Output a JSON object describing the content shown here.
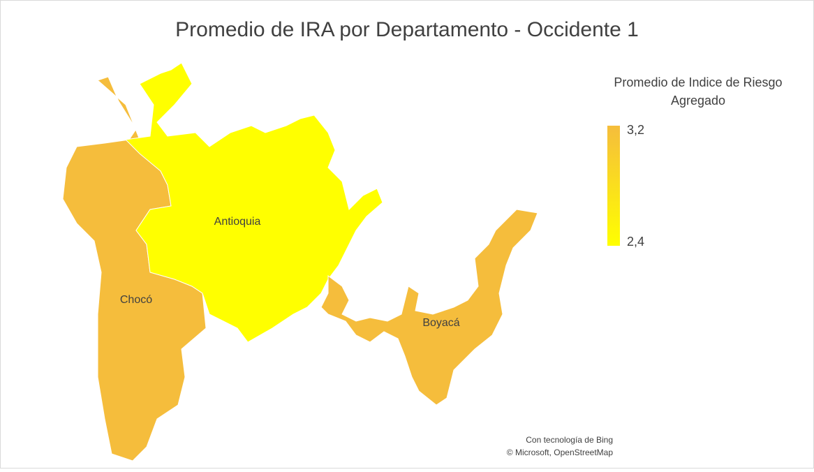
{
  "chart_data": {
    "type": "map",
    "title": "Promedio de IRA por Departamento - Occidente 1",
    "legend_title": [
      "Promedio de Indice de Riesgo",
      "Agregado"
    ],
    "categories": [
      "Chocó",
      "Antioquia",
      "Boyacá"
    ],
    "values": [
      3.2,
      2.4,
      3.2
    ],
    "colors": [
      "#ffff00",
      "#f5bd3c"
    ],
    "clim": [
      2.4,
      3.2
    ],
    "cticks": [
      {
        "value": 3.2,
        "label": "3,2"
      },
      {
        "value": 2.4,
        "label": "2,4"
      }
    ],
    "credits": [
      "Con tecnología de Bing",
      "© Microsoft, OpenStreetMap"
    ]
  }
}
